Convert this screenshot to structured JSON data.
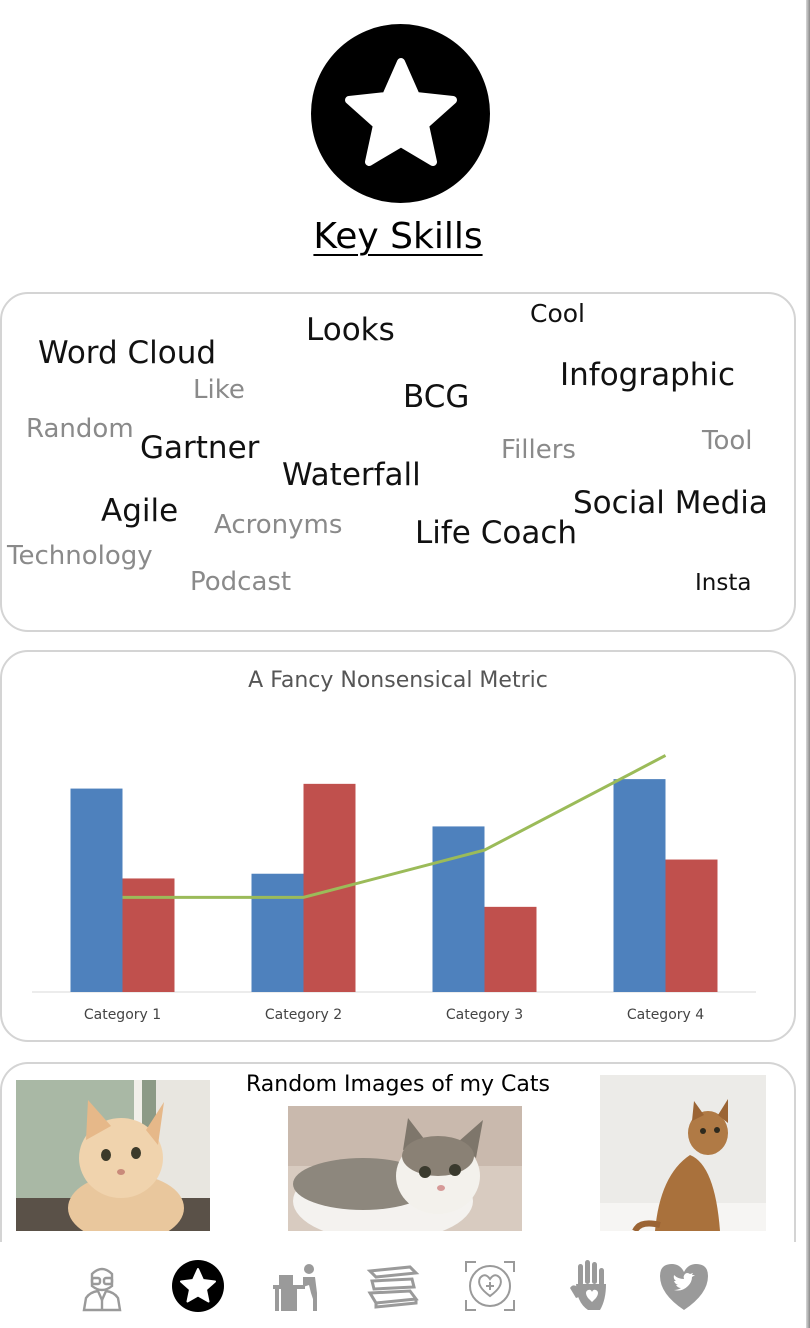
{
  "header": {
    "title": "Key Skills"
  },
  "word_cloud": {
    "words": [
      {
        "text": "Word Cloud",
        "tone": "dark"
      },
      {
        "text": "Looks",
        "tone": "dark"
      },
      {
        "text": "Cool",
        "tone": "dark"
      },
      {
        "text": "Infographic",
        "tone": "dark"
      },
      {
        "text": "Like",
        "tone": "grey"
      },
      {
        "text": "BCG",
        "tone": "dark"
      },
      {
        "text": "Random",
        "tone": "grey"
      },
      {
        "text": "Gartner",
        "tone": "dark"
      },
      {
        "text": "Fillers",
        "tone": "grey"
      },
      {
        "text": "Tool",
        "tone": "grey"
      },
      {
        "text": "Waterfall",
        "tone": "dark"
      },
      {
        "text": "Agile",
        "tone": "dark"
      },
      {
        "text": "Acronyms",
        "tone": "grey"
      },
      {
        "text": "Social Media",
        "tone": "dark"
      },
      {
        "text": "Life Coach",
        "tone": "dark"
      },
      {
        "text": "Technology",
        "tone": "grey"
      },
      {
        "text": "Podcast",
        "tone": "grey"
      },
      {
        "text": "Insta",
        "tone": "dark"
      }
    ]
  },
  "chart_data": {
    "type": "bar",
    "title": "A Fancy Nonsensical Metric",
    "categories": [
      "Category 1",
      "Category 2",
      "Category 3",
      "Category 4"
    ],
    "series": [
      {
        "kind": "bar",
        "color": "#4e81bd",
        "values": [
          4.3,
          2.5,
          3.5,
          4.5
        ]
      },
      {
        "kind": "bar",
        "color": "#c0504d",
        "values": [
          2.4,
          4.4,
          1.8,
          2.8
        ]
      },
      {
        "kind": "line",
        "color": "#9bbb59",
        "values": [
          2.0,
          2.0,
          3.0,
          5.0
        ]
      }
    ],
    "ylim": [
      0,
      5.2
    ],
    "grid": false,
    "legend": "none"
  },
  "cats": {
    "title": "Random Images of my Cats",
    "photos": [
      "cat-photo-1",
      "cat-photo-2",
      "cat-photo-3"
    ]
  },
  "nav": {
    "items": [
      {
        "icon": "doctor-avatar-icon"
      },
      {
        "icon": "star-icon",
        "active": true
      },
      {
        "icon": "person-at-desk-icon"
      },
      {
        "icon": "stacked-books-icon"
      },
      {
        "icon": "heart-target-icon"
      },
      {
        "icon": "raised-hand-icon"
      },
      {
        "icon": "twitter-heart-icon"
      }
    ]
  },
  "colors": {
    "accent": "#000000",
    "icon_grey": "#9a9a9a"
  }
}
